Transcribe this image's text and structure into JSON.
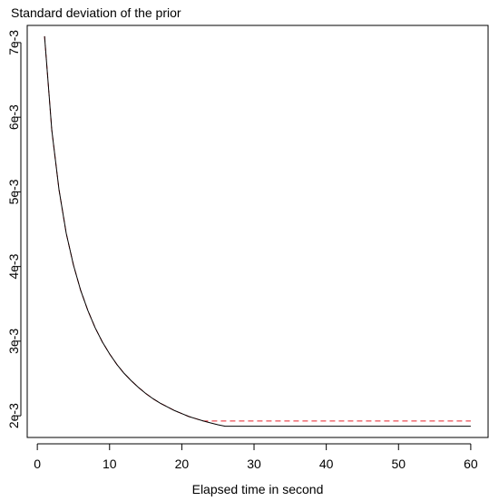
{
  "chart_data": {
    "type": "line",
    "title": "Standard deviation of the prior",
    "xlabel": "Elapsed time in second",
    "ylabel": "",
    "xlim": [
      -1.4,
      62.4
    ],
    "ylim": [
      0.00171,
      0.00723
    ],
    "x_ticks": [
      0,
      10,
      20,
      30,
      40,
      50,
      60
    ],
    "x_tick_labels": [
      "0",
      "10",
      "20",
      "30",
      "40",
      "50",
      "60"
    ],
    "y_ticks": [
      0.002,
      0.003,
      0.004,
      0.005,
      0.006,
      0.007
    ],
    "y_tick_labels": [
      "2e-3",
      "3e-3",
      "4e-3",
      "5e-3",
      "6e-3",
      "7e-3"
    ],
    "grid": false,
    "legend": "none",
    "series": [
      {
        "color": "#000000",
        "style": "solid",
        "x": [
          1,
          2,
          3,
          4,
          5,
          6,
          7,
          8,
          9,
          10,
          11,
          12,
          13,
          14,
          15,
          16,
          17,
          18,
          19,
          20,
          21,
          22,
          23,
          24,
          25,
          26,
          27,
          28,
          29,
          30,
          35,
          40,
          45,
          50,
          55,
          60
        ],
        "values": [
          0.007085,
          0.00583,
          0.00503,
          0.004445,
          0.00402,
          0.00368,
          0.00341,
          0.00318,
          0.00299,
          0.00283,
          0.00269,
          0.00257,
          0.00247,
          0.00238,
          0.0023,
          0.00223,
          0.00217,
          0.00212,
          0.00207,
          0.00203,
          0.00199,
          0.00196,
          0.00193,
          0.001905,
          0.00188,
          0.00186,
          0.00186,
          0.00186,
          0.00186,
          0.00186,
          0.00186,
          0.00186,
          0.00186,
          0.00186,
          0.00186,
          0.00186
        ]
      },
      {
        "color": "#e8212a",
        "style": "dashed",
        "x": [
          1,
          2,
          3,
          4,
          5,
          6,
          7,
          8,
          9,
          10,
          11,
          12,
          13,
          14,
          15,
          16,
          17,
          18,
          19,
          20,
          21,
          22,
          23,
          24,
          30,
          40,
          50,
          60
        ],
        "values": [
          0.007085,
          0.00583,
          0.00503,
          0.004445,
          0.00402,
          0.00368,
          0.00341,
          0.00318,
          0.00299,
          0.00283,
          0.00269,
          0.00257,
          0.00247,
          0.00238,
          0.0023,
          0.00223,
          0.00217,
          0.00212,
          0.00207,
          0.00203,
          0.00199,
          0.00196,
          0.00193,
          0.00193,
          0.00193,
          0.00193,
          0.00193,
          0.00193
        ]
      }
    ]
  }
}
